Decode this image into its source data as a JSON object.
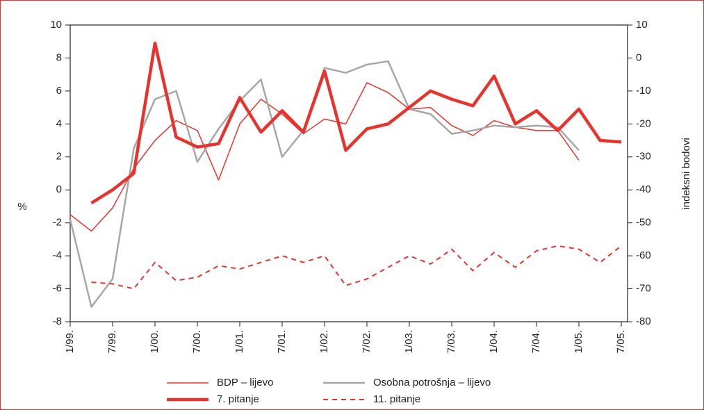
{
  "chart_data": {
    "type": "line",
    "categories": [
      "1/99.",
      null,
      "7/99.",
      null,
      "1/00.",
      null,
      "7/00.",
      null,
      "1/01.",
      null,
      "7/01.",
      null,
      "1/02.",
      null,
      "7/02.",
      null,
      "1/03.",
      null,
      "7/03.",
      null,
      "1/04.",
      null,
      "7/04.",
      null,
      "1/05.",
      null,
      "7/05."
    ],
    "y_label": "%",
    "y2_label": "indeksni bodovi",
    "ylim": [
      -8,
      10
    ],
    "yticks": [
      -8,
      -6,
      -4,
      -2,
      0,
      2,
      4,
      6,
      8,
      10
    ],
    "y2lim": [
      -80,
      10
    ],
    "y2ticks": [
      -80,
      -70,
      -60,
      -50,
      -40,
      -30,
      -20,
      -10,
      0,
      10
    ],
    "series": [
      {
        "name": "BDP – lijevo",
        "color": "#e8322d",
        "linewidth": 1.5,
        "line_style": "solid",
        "values": [
          -1.5,
          -2.5,
          -1.1,
          1.3,
          3.0,
          4.2,
          3.6,
          0.6,
          4.0,
          5.5,
          4.6,
          3.4,
          4.3,
          4.0,
          6.5,
          5.9,
          4.9,
          5.0,
          3.9,
          3.3,
          4.2,
          3.8,
          3.6,
          3.6,
          1.8,
          null,
          null
        ]
      },
      {
        "name": "Osobna potrošnja – lijevo",
        "color": "#a6a6a6",
        "linewidth": 2.5,
        "line_style": "solid",
        "values": [
          -1.8,
          -7.1,
          -5.4,
          2.5,
          5.5,
          6.0,
          1.7,
          3.7,
          5.4,
          6.7,
          2.0,
          3.6,
          7.4,
          7.1,
          7.6,
          7.8,
          4.9,
          4.6,
          3.4,
          3.6,
          3.9,
          3.8,
          3.9,
          3.8,
          2.4,
          null,
          null
        ]
      },
      {
        "name": "7. pitanje",
        "color": "#e8322d",
        "linewidth": 4.5,
        "line_style": "solid",
        "axis": "y2",
        "values": [
          null,
          -44,
          -40,
          -35,
          4.5,
          -24,
          -27,
          -26,
          -12,
          -22.5,
          -16,
          -22.5,
          -4,
          -28,
          -21.5,
          -20,
          -15,
          -10,
          -12.5,
          -14.5,
          -5.5,
          -20,
          -16,
          -22,
          -15.5,
          -25,
          -25.5
        ]
      },
      {
        "name": "11. pitanje",
        "color": "#e8322d",
        "linewidth": 2,
        "line_style": "dashed",
        "axis": "y2",
        "values": [
          null,
          -68,
          -68.5,
          -70,
          -62,
          -67.5,
          -66.5,
          -63,
          -64,
          -62,
          -60,
          -62,
          -60,
          -69,
          -67,
          -63.5,
          -60,
          -62.5,
          -58,
          -64.5,
          -59,
          -63.5,
          -58.5,
          -57,
          -58,
          -62,
          -57
        ]
      }
    ]
  }
}
